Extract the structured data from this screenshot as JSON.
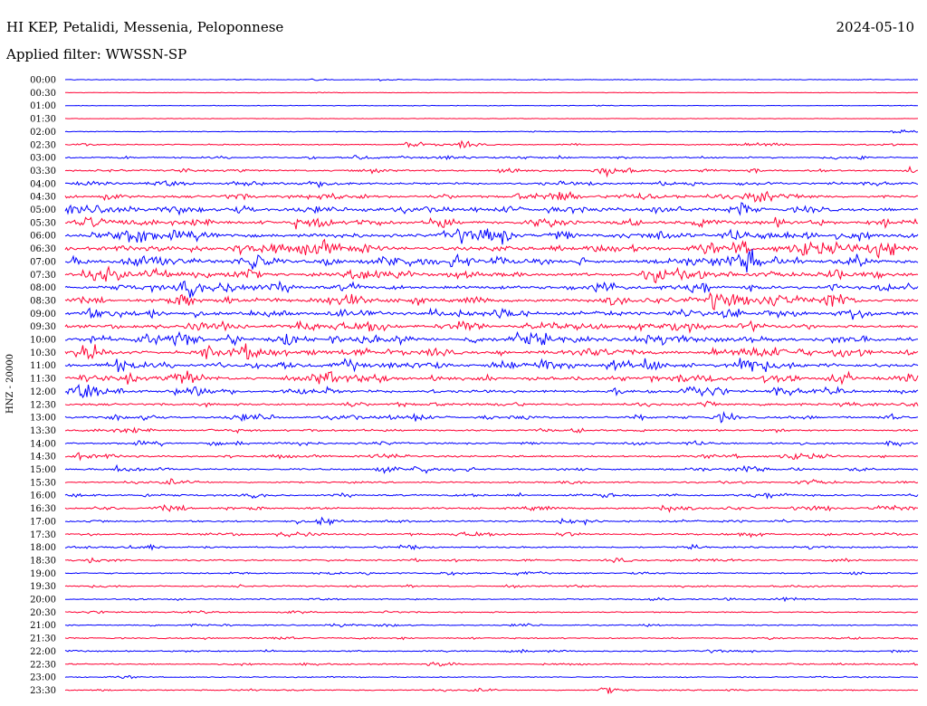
{
  "header": {
    "station": "HI KEP, Petalidi, Messenia, Peloponnese",
    "date": "2024-05-10",
    "filter": "Applied filter: WWSSN-SP"
  },
  "colors": {
    "blue": "#0000ff",
    "red": "#ff0033"
  },
  "chart_data": {
    "type": "line",
    "title": "HI KEP, Petalidi, Messenia, Peloponnese",
    "subtitle": "Applied filter: WWSSN-SP",
    "ylabel": "HNZ - 20000",
    "xlabel": "",
    "row_labels": [
      "00:00",
      "00:30",
      "01:00",
      "01:30",
      "02:00",
      "02:30",
      "03:00",
      "03:30",
      "04:00",
      "04:30",
      "05:00",
      "05:30",
      "06:00",
      "06:30",
      "07:00",
      "07:30",
      "08:00",
      "08:30",
      "09:00",
      "09:30",
      "10:00",
      "10:30",
      "11:00",
      "11:30",
      "12:00",
      "12:30",
      "13:00",
      "13:30",
      "14:00",
      "14:30",
      "15:00",
      "15:30",
      "16:00",
      "16:30",
      "17:00",
      "17:30",
      "18:00",
      "18:30",
      "19:00",
      "19:30",
      "20:00",
      "20:30",
      "21:00",
      "21:30",
      "22:00",
      "22:30",
      "23:00",
      "23:30"
    ],
    "trace_colors": [
      "blue",
      "red"
    ],
    "activity": [
      0.4,
      0.2,
      0.4,
      0.2,
      0.5,
      1.3,
      2.0,
      2.4,
      3.0,
      3.6,
      4.2,
      4.5,
      5.5,
      5.5,
      5.8,
      5.2,
      4.8,
      5.0,
      4.8,
      4.6,
      5.2,
      4.8,
      5.0,
      4.8,
      4.2,
      3.2,
      3.0,
      2.6,
      2.6,
      2.4,
      2.6,
      2.0,
      2.4,
      2.6,
      2.4,
      2.4,
      2.0,
      2.0,
      1.8,
      1.8,
      1.6,
      1.4,
      1.4,
      1.6,
      1.6,
      1.6,
      1.2,
      1.4
    ],
    "events": [
      {
        "row": 0,
        "t": 0.29,
        "a": 0.3
      },
      {
        "row": 0,
        "t": 0.37,
        "a": 0.25
      },
      {
        "row": 0,
        "t": 0.54,
        "a": 0.25
      },
      {
        "row": 2,
        "t": 0.62,
        "a": 0.2
      },
      {
        "row": 4,
        "t": 0.97,
        "a": 0.9
      },
      {
        "row": 5,
        "t": 0.4,
        "a": 1.6
      },
      {
        "row": 5,
        "t": 0.46,
        "a": 1.8
      },
      {
        "row": 5,
        "t": 0.96,
        "a": 0.6
      },
      {
        "row": 6,
        "t": 0.34,
        "a": 0.8
      },
      {
        "row": 6,
        "t": 0.47,
        "a": 0.5
      },
      {
        "row": 7,
        "t": 0.36,
        "a": 0.5
      },
      {
        "row": 7,
        "t": 0.51,
        "a": 1.0
      },
      {
        "row": 7,
        "t": 0.62,
        "a": 0.7
      },
      {
        "row": 7,
        "t": 0.99,
        "a": 0.9
      },
      {
        "row": 8,
        "t": 0.2,
        "a": 0.5
      },
      {
        "row": 8,
        "t": 0.58,
        "a": 0.5
      },
      {
        "row": 8,
        "t": 0.79,
        "a": 0.5
      },
      {
        "row": 9,
        "t": 0.05,
        "a": 0.7
      },
      {
        "row": 9,
        "t": 0.53,
        "a": 1.0
      },
      {
        "row": 9,
        "t": 0.58,
        "a": 1.2
      },
      {
        "row": 9,
        "t": 0.8,
        "a": 1.2
      },
      {
        "row": 10,
        "t": 0.13,
        "a": 0.6
      },
      {
        "row": 10,
        "t": 0.2,
        "a": 0.8
      },
      {
        "row": 10,
        "t": 0.52,
        "a": 0.8
      },
      {
        "row": 10,
        "t": 0.78,
        "a": 0.8
      },
      {
        "row": 11,
        "t": 0.27,
        "a": 0.9
      },
      {
        "row": 11,
        "t": 0.34,
        "a": 0.9
      },
      {
        "row": 11,
        "t": 0.44,
        "a": 0.7
      },
      {
        "row": 11,
        "t": 0.96,
        "a": 0.9
      },
      {
        "row": 12,
        "t": 0.03,
        "a": 0.9
      },
      {
        "row": 12,
        "t": 0.07,
        "a": 0.6
      },
      {
        "row": 12,
        "t": 0.65,
        "a": 0.9
      },
      {
        "row": 12,
        "t": 0.84,
        "a": 0.8
      },
      {
        "row": 13,
        "t": 0.15,
        "a": 0.7
      },
      {
        "row": 13,
        "t": 0.5,
        "a": 0.8
      },
      {
        "row": 13,
        "t": 0.9,
        "a": 0.8
      },
      {
        "row": 14,
        "t": 0.01,
        "a": 0.9
      },
      {
        "row": 14,
        "t": 0.3,
        "a": 1.0
      },
      {
        "row": 14,
        "t": 0.76,
        "a": 0.9
      },
      {
        "row": 15,
        "t": 0.78,
        "a": 1.0
      },
      {
        "row": 15,
        "t": 0.95,
        "a": 0.8
      },
      {
        "row": 16,
        "t": 0.14,
        "a": 1.0
      },
      {
        "row": 16,
        "t": 0.8,
        "a": 0.6
      },
      {
        "row": 17,
        "t": 0.36,
        "a": 1.0
      },
      {
        "row": 17,
        "t": 0.89,
        "a": 1.0
      },
      {
        "row": 18,
        "t": 0.03,
        "a": 0.8
      },
      {
        "row": 18,
        "t": 0.35,
        "a": 1.0
      },
      {
        "row": 18,
        "t": 0.82,
        "a": 0.8
      },
      {
        "row": 19,
        "t": 0.54,
        "a": 0.7
      },
      {
        "row": 19,
        "t": 0.73,
        "a": 0.7
      },
      {
        "row": 20,
        "t": 0.03,
        "a": 1.0
      },
      {
        "row": 20,
        "t": 0.12,
        "a": 1.0
      },
      {
        "row": 20,
        "t": 0.53,
        "a": 0.8
      },
      {
        "row": 21,
        "t": 0.16,
        "a": 1.0
      },
      {
        "row": 21,
        "t": 0.42,
        "a": 1.3
      },
      {
        "row": 21,
        "t": 0.86,
        "a": 1.2
      },
      {
        "row": 22,
        "t": 0.5,
        "a": 1.1
      },
      {
        "row": 22,
        "t": 0.65,
        "a": 1.2
      },
      {
        "row": 22,
        "t": 0.79,
        "a": 1.1
      },
      {
        "row": 23,
        "t": 0.02,
        "a": 0.8
      },
      {
        "row": 23,
        "t": 0.43,
        "a": 0.9
      },
      {
        "row": 23,
        "t": 0.72,
        "a": 0.9
      },
      {
        "row": 23,
        "t": 0.82,
        "a": 1.1
      },
      {
        "row": 24,
        "t": 0.15,
        "a": 1.0
      },
      {
        "row": 24,
        "t": 0.73,
        "a": 1.2
      },
      {
        "row": 24,
        "t": 0.83,
        "a": 0.9
      },
      {
        "row": 26,
        "t": 0.41,
        "a": 1.1
      },
      {
        "row": 29,
        "t": 0.01,
        "a": 1.2
      },
      {
        "row": 30,
        "t": 0.06,
        "a": 1.1
      },
      {
        "row": 30,
        "t": 0.41,
        "a": 1.5
      },
      {
        "row": 33,
        "t": 0.7,
        "a": 1.1
      },
      {
        "row": 34,
        "t": 0.61,
        "a": 0.6
      },
      {
        "row": 44,
        "t": 0.97,
        "a": 0.5
      },
      {
        "row": 47,
        "t": 0.63,
        "a": 1.3
      }
    ]
  }
}
